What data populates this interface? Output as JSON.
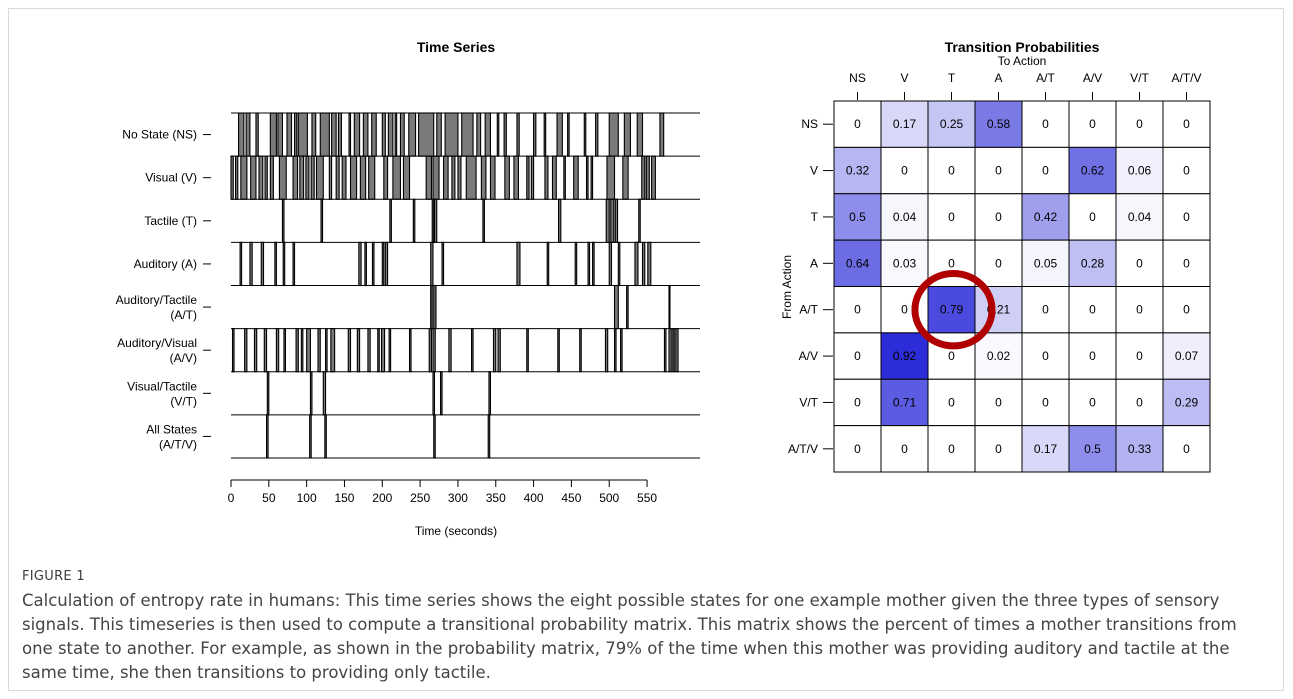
{
  "figure": {
    "label": "FIGURE 1",
    "caption": "Calculation of entropy rate in humans: This time series shows the eight possible states for one example mother given the three types of sensory signals. This timeseries is then used to compute a transitional probability matrix. This matrix shows the percent of times a mother transitions from one state to another. For example, as shown in the probability matrix, 79% of the time when this mother was providing auditory and tactile at the same time, she then transitions to providing only tactile."
  },
  "chart_data": [
    {
      "type": "timeline",
      "title": "Time Series",
      "xlabel": "Time (seconds)",
      "xlim": [
        0,
        620
      ],
      "xticks": [
        0,
        50,
        100,
        150,
        200,
        250,
        300,
        350,
        400,
        450,
        500,
        550
      ],
      "rows": [
        {
          "label": "No State (NS)",
          "intervals": [
            [
              10,
              17
            ],
            [
              20,
              25
            ],
            [
              33,
              36
            ],
            [
              52,
              60
            ],
            [
              62,
              68
            ],
            [
              74,
              80
            ],
            [
              84,
              87
            ],
            [
              89,
              101
            ],
            [
              107,
              112
            ],
            [
              118,
              130
            ],
            [
              133,
              139
            ],
            [
              142,
              146
            ],
            [
              156,
              158
            ],
            [
              163,
              170
            ],
            [
              175,
              181
            ],
            [
              186,
              192
            ],
            [
              200,
              204
            ],
            [
              208,
              214
            ],
            [
              217,
              219
            ],
            [
              224,
              229
            ],
            [
              235,
              244
            ],
            [
              248,
              268
            ],
            [
              272,
              278
            ],
            [
              283,
              300
            ],
            [
              305,
              320
            ],
            [
              325,
              330
            ],
            [
              336,
              343
            ],
            [
              352,
              354
            ],
            [
              361,
              364
            ],
            [
              378,
              381
            ],
            [
              400,
              403
            ],
            [
              414,
              416
            ],
            [
              431,
              438
            ],
            [
              445,
              447
            ],
            [
              467,
              469
            ],
            [
              482,
              485
            ],
            [
              500,
              512
            ],
            [
              520,
              528
            ],
            [
              537,
              544
            ],
            [
              567,
              572
            ]
          ]
        },
        {
          "label": "Visual (V)",
          "intervals": [
            [
              0,
              3
            ],
            [
              6,
              9
            ],
            [
              13,
              21
            ],
            [
              26,
              33
            ],
            [
              37,
              42
            ],
            [
              45,
              48
            ],
            [
              52,
              56
            ],
            [
              64,
              73
            ],
            [
              82,
              88
            ],
            [
              91,
              96
            ],
            [
              99,
              103
            ],
            [
              106,
              110
            ],
            [
              113,
              122
            ],
            [
              130,
              133
            ],
            [
              139,
              143
            ],
            [
              147,
              152
            ],
            [
              158,
              166
            ],
            [
              171,
              178
            ],
            [
              182,
              190
            ],
            [
              202,
              207
            ],
            [
              214,
              224
            ],
            [
              228,
              236
            ],
            [
              258,
              265
            ],
            [
              267,
              275
            ],
            [
              281,
              287
            ],
            [
              292,
              296
            ],
            [
              300,
              304
            ],
            [
              311,
              324
            ],
            [
              331,
              337
            ],
            [
              343,
              349
            ],
            [
              362,
              368
            ],
            [
              374,
              380
            ],
            [
              391,
              394
            ],
            [
              397,
              400
            ],
            [
              415,
              419
            ],
            [
              425,
              430
            ],
            [
              440,
              442
            ],
            [
              453,
              459
            ],
            [
              470,
              472
            ],
            [
              476,
              478
            ],
            [
              497,
              507
            ],
            [
              518,
              525
            ],
            [
              543,
              547
            ],
            [
              549,
              553
            ],
            [
              556,
              561
            ]
          ]
        },
        {
          "label": "Tactile (T)",
          "intervals": [
            [
              68,
              70
            ],
            [
              119,
              121
            ],
            [
              210,
              212
            ],
            [
              241,
              243
            ],
            [
              266,
              268
            ],
            [
              269,
              272
            ],
            [
              333,
              335
            ],
            [
              433,
              436
            ],
            [
              496,
              500
            ],
            [
              502,
              506
            ],
            [
              508,
              511
            ],
            [
              539,
              541
            ]
          ]
        },
        {
          "label": "Auditory (A)",
          "intervals": [
            [
              12,
              14
            ],
            [
              25,
              28
            ],
            [
              40,
              43
            ],
            [
              58,
              60
            ],
            [
              69,
              71
            ],
            [
              82,
              84
            ],
            [
              169,
              172
            ],
            [
              177,
              179
            ],
            [
              187,
              189
            ],
            [
              200,
              202
            ],
            [
              204,
              207
            ],
            [
              264,
              267
            ],
            [
              279,
              281
            ],
            [
              378,
              382
            ],
            [
              418,
              420
            ],
            [
              455,
              457
            ],
            [
              472,
              474
            ],
            [
              478,
              480
            ],
            [
              500,
              503
            ],
            [
              512,
              514
            ],
            [
              534,
              538
            ],
            [
              544,
              547
            ],
            [
              551,
              555
            ]
          ]
        },
        {
          "label": "Auditory/Tactile (A/T)",
          "intervals": [
            [
              264,
              266
            ],
            [
              268,
              271
            ],
            [
              507,
              512
            ],
            [
              523,
              525
            ],
            [
              579,
              580
            ]
          ]
        },
        {
          "label": "Auditory/Visual (A/V)",
          "intervals": [
            [
              2,
              4
            ],
            [
              18,
              21
            ],
            [
              31,
              34
            ],
            [
              44,
              47
            ],
            [
              60,
              63
            ],
            [
              70,
              72
            ],
            [
              86,
              89
            ],
            [
              93,
              95
            ],
            [
              100,
              105
            ],
            [
              115,
              118
            ],
            [
              125,
              127
            ],
            [
              132,
              137
            ],
            [
              155,
              158
            ],
            [
              167,
              170
            ],
            [
              181,
              184
            ],
            [
              194,
              196
            ],
            [
              199,
              203
            ],
            [
              209,
              211
            ],
            [
              236,
              238
            ],
            [
              262,
              265
            ],
            [
              267,
              270
            ],
            [
              288,
              291
            ],
            [
              318,
              320
            ],
            [
              347,
              350
            ],
            [
              353,
              356
            ],
            [
              391,
              393
            ],
            [
              432,
              434
            ],
            [
              461,
              463
            ],
            [
              495,
              498
            ],
            [
              507,
              509
            ],
            [
              515,
              517
            ],
            [
              573,
              575
            ],
            [
              579,
              582
            ],
            [
              584,
              586
            ],
            [
              588,
              591
            ]
          ]
        },
        {
          "label": "Visual/Tactile (V/T)",
          "intervals": [
            [
              48,
              50
            ],
            [
              105,
              107
            ],
            [
              122,
              125
            ],
            [
              267,
              269
            ],
            [
              277,
              279
            ],
            [
              341,
              343
            ]
          ]
        },
        {
          "label": "All States (A/T/V)",
          "intervals": [
            [
              47,
              49
            ],
            [
              104,
              106
            ],
            [
              124,
              126
            ],
            [
              268,
              270
            ],
            [
              340,
              342
            ]
          ]
        }
      ]
    },
    {
      "type": "heatmap",
      "title": "Transition Probabilities",
      "xlabel": "To Action",
      "ylabel": "From Action",
      "columns": [
        "NS",
        "V",
        "T",
        "A",
        "A/T",
        "A/V",
        "V/T",
        "A/T/V"
      ],
      "rows": [
        "NS",
        "V",
        "T",
        "A",
        "A/T",
        "A/V",
        "V/T",
        "A/T/V"
      ],
      "values": [
        [
          0,
          0.17,
          0.25,
          0.58,
          0,
          0,
          0,
          0
        ],
        [
          0.32,
          0,
          0,
          0,
          0,
          0.62,
          0.06,
          0
        ],
        [
          0.5,
          0.04,
          0,
          0,
          0.42,
          0,
          0.04,
          0
        ],
        [
          0.64,
          0.03,
          0,
          0,
          0.05,
          0.28,
          0,
          0
        ],
        [
          0,
          0,
          0.79,
          0.21,
          0,
          0,
          0,
          0
        ],
        [
          0,
          0.92,
          0,
          0.02,
          0,
          0,
          0,
          0.07
        ],
        [
          0,
          0.71,
          0,
          0,
          0,
          0,
          0,
          0.29
        ],
        [
          0,
          0,
          0,
          0,
          0.17,
          0.5,
          0.33,
          0
        ]
      ],
      "highlight": {
        "row": "A/T",
        "column": "T",
        "color": "#b00000"
      },
      "color_scale": {
        "low": "#ffffff",
        "high": "#1a1ad6"
      }
    }
  ]
}
